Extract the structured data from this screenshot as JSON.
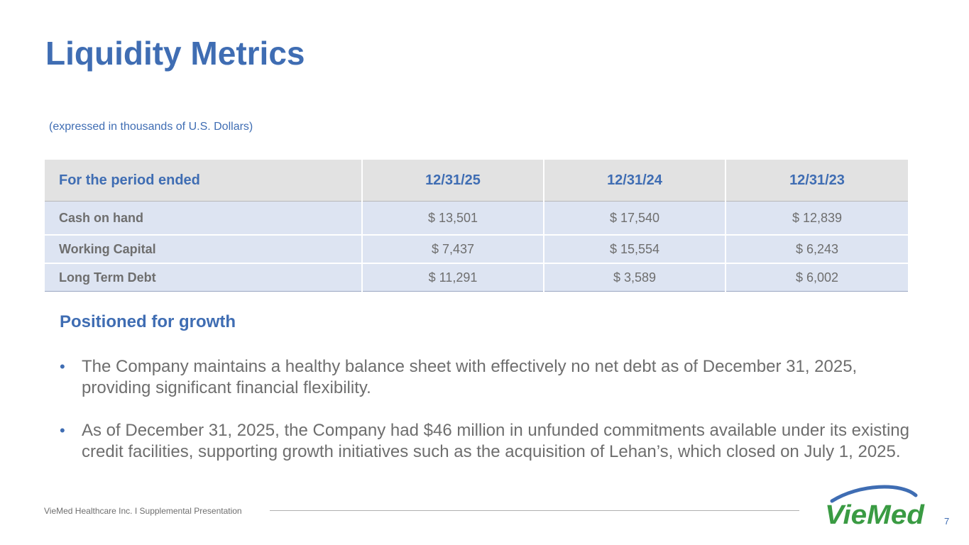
{
  "slide": {
    "title": "Liquidity Metrics",
    "subtitle": "(expressed in thousands of U.S. Dollars)"
  },
  "table": {
    "header": [
      "For the period ended",
      "12/31/25",
      "12/31/24",
      "12/31/23"
    ],
    "rows": [
      [
        "Cash on hand",
        "$ 13,501",
        "$ 17,540",
        "$ 12,839"
      ],
      [
        "Working Capital",
        "$ 7,437",
        "$ 15,554",
        "$ 6,243"
      ],
      [
        "Long Term Debt",
        "$ 11,291",
        "$ 3,589",
        "$ 6,002"
      ]
    ]
  },
  "section": {
    "heading": "Positioned for growth",
    "bullets": [
      "The Company maintains a healthy balance sheet with effectively no net debt as of December 31, 2025, providing significant financial flexibility.",
      "As of December 31, 2025, the Company had $46 million in unfunded commitments available under its existing credit facilities, supporting growth initiatives such as the acquisition of Lehan’s, which closed on July 1, 2025."
    ]
  },
  "footer": {
    "text": "VieMed Healthcare Inc.  I  Supplemental Presentation",
    "logo_text": "VieMed",
    "logo_icon": "viemed-logo-swoosh-icon",
    "page_number": "7"
  },
  "colors": {
    "accent_blue": "#3f6db3",
    "logo_green": "#3a9b43",
    "header_fill": "#e2e2e2",
    "row_fill": "#dde4f2",
    "body_text": "#6e6e6e"
  }
}
